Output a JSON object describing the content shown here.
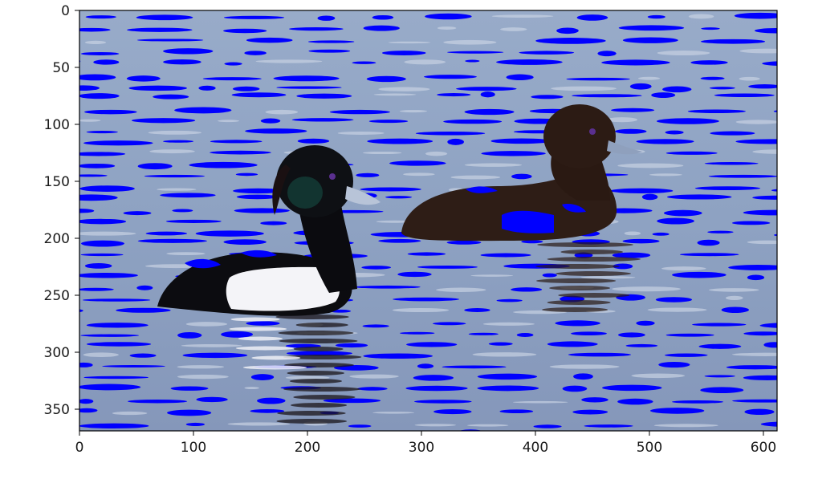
{
  "chart_data": {
    "type": "image",
    "title": "",
    "xlabel": "",
    "ylabel": "",
    "xlim": [
      0,
      612
    ],
    "ylim": [
      369,
      0
    ],
    "x_ticks": [
      0,
      100,
      200,
      300,
      400,
      500,
      600
    ],
    "y_ticks": [
      0,
      50,
      100,
      150,
      200,
      250,
      300,
      350
    ],
    "x_tick_labels": [
      "0",
      "100",
      "200",
      "300",
      "400",
      "500",
      "600"
    ],
    "y_tick_labels": [
      "0",
      "50",
      "100",
      "150",
      "200",
      "250",
      "300",
      "350"
    ],
    "grid": false,
    "image_content": {
      "background": "water",
      "subjects": [
        {
          "kind": "duck-white-flank",
          "position": "front-left"
        },
        {
          "kind": "duck-brown",
          "position": "back-right"
        }
      ]
    },
    "colors": {
      "water_light": "#9fb0cc",
      "water_mid": "#7f93b6",
      "ripple_highlight": "#0000ff",
      "duck_black": "#0b0b0f",
      "duck_brown": "#2e1d16",
      "duck_white": "#f4f4f8",
      "bill": "#b8c4d8"
    }
  }
}
